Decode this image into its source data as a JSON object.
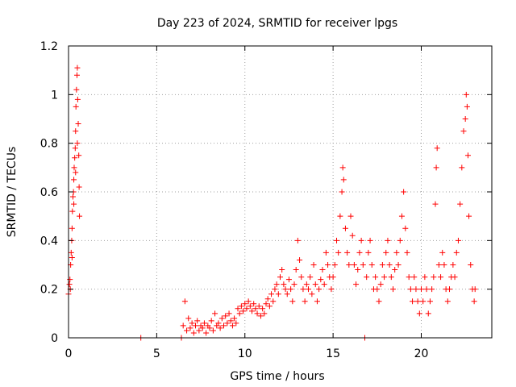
{
  "chart_data": {
    "type": "scatter",
    "title": "Day 223 of 2024, SRMTID for receiver lpgs",
    "xlabel": "GPS time / hours",
    "ylabel": "SRMTID / TECUs",
    "xlim": [
      0,
      24
    ],
    "ylim": [
      0,
      1.2
    ],
    "x_ticks": [
      0,
      5,
      10,
      15,
      20
    ],
    "x_tick_labels": [
      "0",
      "5",
      "10",
      "15",
      "20"
    ],
    "y_ticks": [
      0,
      0.2,
      0.4,
      0.6,
      0.8,
      1.0,
      1.2
    ],
    "y_tick_labels": [
      "0",
      "0.2",
      "0.4",
      "0.6",
      "0.8",
      "1",
      "1.2"
    ],
    "grid": true,
    "marker": "+",
    "color": "#ff0000",
    "series": [
      {
        "name": "SRMTID",
        "points": [
          [
            0.0,
            0.18
          ],
          [
            0.05,
            0.22
          ],
          [
            0.08,
            0.24
          ],
          [
            0.1,
            0.2
          ],
          [
            0.12,
            0.3
          ],
          [
            0.15,
            0.35
          ],
          [
            0.18,
            0.4
          ],
          [
            0.2,
            0.45
          ],
          [
            0.22,
            0.52
          ],
          [
            0.25,
            0.58
          ],
          [
            0.28,
            0.6
          ],
          [
            0.3,
            0.65
          ],
          [
            0.32,
            0.7
          ],
          [
            0.35,
            0.74
          ],
          [
            0.38,
            0.78
          ],
          [
            0.4,
            0.85
          ],
          [
            0.42,
            0.95
          ],
          [
            0.45,
            1.02
          ],
          [
            0.48,
            1.08
          ],
          [
            0.5,
            1.11
          ],
          [
            0.52,
            0.98
          ],
          [
            0.55,
            0.88
          ],
          [
            0.58,
            0.75
          ],
          [
            0.6,
            0.62
          ],
          [
            0.62,
            0.5
          ],
          [
            0.3,
            0.55
          ],
          [
            0.2,
            0.33
          ],
          [
            0.4,
            0.68
          ],
          [
            0.5,
            0.8
          ],
          [
            4.1,
            0.0
          ],
          [
            6.4,
            0.0
          ],
          [
            6.5,
            0.05
          ],
          [
            6.6,
            0.15
          ],
          [
            6.7,
            0.03
          ],
          [
            6.8,
            0.08
          ],
          [
            6.9,
            0.04
          ],
          [
            7.0,
            0.06
          ],
          [
            7.1,
            0.02
          ],
          [
            7.2,
            0.05
          ],
          [
            7.3,
            0.07
          ],
          [
            7.4,
            0.03
          ],
          [
            7.5,
            0.05
          ],
          [
            7.6,
            0.04
          ],
          [
            7.7,
            0.06
          ],
          [
            7.8,
            0.02
          ],
          [
            7.9,
            0.05
          ],
          [
            8.0,
            0.04
          ],
          [
            8.1,
            0.07
          ],
          [
            8.2,
            0.03
          ],
          [
            8.3,
            0.1
          ],
          [
            8.4,
            0.05
          ],
          [
            8.5,
            0.06
          ],
          [
            8.6,
            0.04
          ],
          [
            8.7,
            0.08
          ],
          [
            8.8,
            0.05
          ],
          [
            8.9,
            0.09
          ],
          [
            9.0,
            0.06
          ],
          [
            9.1,
            0.1
          ],
          [
            9.2,
            0.07
          ],
          [
            9.3,
            0.05
          ],
          [
            9.4,
            0.08
          ],
          [
            9.5,
            0.06
          ],
          [
            9.6,
            0.12
          ],
          [
            9.7,
            0.1
          ],
          [
            9.8,
            0.13
          ],
          [
            9.9,
            0.11
          ],
          [
            10.0,
            0.14
          ],
          [
            10.1,
            0.12
          ],
          [
            10.2,
            0.15
          ],
          [
            10.3,
            0.13
          ],
          [
            10.4,
            0.11
          ],
          [
            10.5,
            0.14
          ],
          [
            10.6,
            0.12
          ],
          [
            10.7,
            0.1
          ],
          [
            10.8,
            0.13
          ],
          [
            10.9,
            0.09
          ],
          [
            11.0,
            0.12
          ],
          [
            11.1,
            0.1
          ],
          [
            11.2,
            0.14
          ],
          [
            11.3,
            0.16
          ],
          [
            11.4,
            0.13
          ],
          [
            11.5,
            0.18
          ],
          [
            11.6,
            0.15
          ],
          [
            11.7,
            0.2
          ],
          [
            11.8,
            0.22
          ],
          [
            11.9,
            0.18
          ],
          [
            12.0,
            0.25
          ],
          [
            12.1,
            0.28
          ],
          [
            12.2,
            0.22
          ],
          [
            12.3,
            0.2
          ],
          [
            12.4,
            0.18
          ],
          [
            12.5,
            0.24
          ],
          [
            12.6,
            0.2
          ],
          [
            12.7,
            0.15
          ],
          [
            12.8,
            0.22
          ],
          [
            12.9,
            0.28
          ],
          [
            13.0,
            0.4
          ],
          [
            13.1,
            0.32
          ],
          [
            13.2,
            0.25
          ],
          [
            13.3,
            0.2
          ],
          [
            13.4,
            0.15
          ],
          [
            13.5,
            0.22
          ],
          [
            13.6,
            0.2
          ],
          [
            13.7,
            0.25
          ],
          [
            13.8,
            0.18
          ],
          [
            13.9,
            0.3
          ],
          [
            14.0,
            0.22
          ],
          [
            14.1,
            0.15
          ],
          [
            14.2,
            0.2
          ],
          [
            14.3,
            0.24
          ],
          [
            14.4,
            0.28
          ],
          [
            14.5,
            0.22
          ],
          [
            14.6,
            0.35
          ],
          [
            14.7,
            0.3
          ],
          [
            14.8,
            0.25
          ],
          [
            14.9,
            0.2
          ],
          [
            15.0,
            0.25
          ],
          [
            15.1,
            0.3
          ],
          [
            15.2,
            0.4
          ],
          [
            15.3,
            0.35
          ],
          [
            15.4,
            0.5
          ],
          [
            15.5,
            0.6
          ],
          [
            15.55,
            0.7
          ],
          [
            15.6,
            0.65
          ],
          [
            15.7,
            0.45
          ],
          [
            15.8,
            0.35
          ],
          [
            15.9,
            0.3
          ],
          [
            16.0,
            0.5
          ],
          [
            16.1,
            0.42
          ],
          [
            16.2,
            0.3
          ],
          [
            16.3,
            0.22
          ],
          [
            16.4,
            0.28
          ],
          [
            16.5,
            0.35
          ],
          [
            16.6,
            0.4
          ],
          [
            16.7,
            0.3
          ],
          [
            16.8,
            0.0
          ],
          [
            16.9,
            0.25
          ],
          [
            17.0,
            0.35
          ],
          [
            17.1,
            0.4
          ],
          [
            17.2,
            0.3
          ],
          [
            17.3,
            0.2
          ],
          [
            17.4,
            0.25
          ],
          [
            17.5,
            0.2
          ],
          [
            17.6,
            0.15
          ],
          [
            17.7,
            0.22
          ],
          [
            17.8,
            0.3
          ],
          [
            17.9,
            0.25
          ],
          [
            18.0,
            0.35
          ],
          [
            18.1,
            0.4
          ],
          [
            18.2,
            0.3
          ],
          [
            18.3,
            0.25
          ],
          [
            18.4,
            0.2
          ],
          [
            18.5,
            0.28
          ],
          [
            18.6,
            0.35
          ],
          [
            18.7,
            0.3
          ],
          [
            18.8,
            0.4
          ],
          [
            18.9,
            0.5
          ],
          [
            19.0,
            0.6
          ],
          [
            19.1,
            0.45
          ],
          [
            19.2,
            0.35
          ],
          [
            19.3,
            0.25
          ],
          [
            19.4,
            0.2
          ],
          [
            19.5,
            0.15
          ],
          [
            19.6,
            0.25
          ],
          [
            19.7,
            0.2
          ],
          [
            19.8,
            0.15
          ],
          [
            19.9,
            0.1
          ],
          [
            20.0,
            0.2
          ],
          [
            20.1,
            0.15
          ],
          [
            20.2,
            0.25
          ],
          [
            20.3,
            0.2
          ],
          [
            20.4,
            0.1
          ],
          [
            20.5,
            0.15
          ],
          [
            20.6,
            0.2
          ],
          [
            20.7,
            0.25
          ],
          [
            20.8,
            0.55
          ],
          [
            20.85,
            0.7
          ],
          [
            20.9,
            0.78
          ],
          [
            21.0,
            0.3
          ],
          [
            21.1,
            0.25
          ],
          [
            21.2,
            0.35
          ],
          [
            21.3,
            0.3
          ],
          [
            21.4,
            0.2
          ],
          [
            21.5,
            0.15
          ],
          [
            21.6,
            0.2
          ],
          [
            21.7,
            0.25
          ],
          [
            21.8,
            0.3
          ],
          [
            21.9,
            0.25
          ],
          [
            22.0,
            0.35
          ],
          [
            22.1,
            0.4
          ],
          [
            22.2,
            0.55
          ],
          [
            22.3,
            0.7
          ],
          [
            22.4,
            0.85
          ],
          [
            22.5,
            0.9
          ],
          [
            22.55,
            1.0
          ],
          [
            22.6,
            0.95
          ],
          [
            22.65,
            0.75
          ],
          [
            22.7,
            0.5
          ],
          [
            22.8,
            0.3
          ],
          [
            22.9,
            0.2
          ],
          [
            23.0,
            0.15
          ],
          [
            23.05,
            0.2
          ]
        ]
      }
    ]
  }
}
